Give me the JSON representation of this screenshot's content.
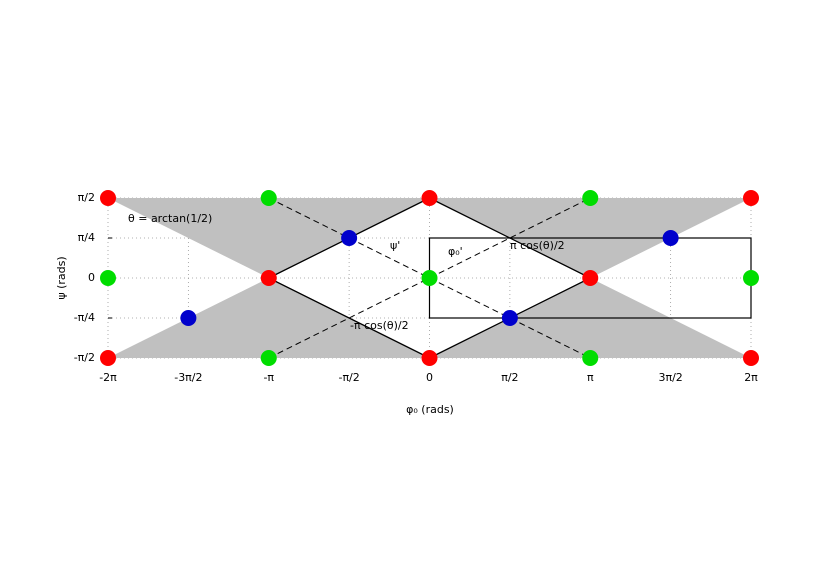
{
  "chart_data": {
    "type": "scatter",
    "xlabel": "φ₀ (rads)",
    "ylabel": "ψ (rads)",
    "xlim": [
      -6.2832,
      6.2832
    ],
    "xticks": [
      {
        "value": -6.2832,
        "label": "-2π"
      },
      {
        "value": -4.7124,
        "label": "-3π/2"
      },
      {
        "value": -3.1416,
        "label": "-π"
      },
      {
        "value": -1.5708,
        "label": "-π/2"
      },
      0,
      {
        "value": 1.5708,
        "label": "π/2"
      },
      {
        "value": 3.1416,
        "label": "π"
      },
      {
        "value": 4.7124,
        "label": "3π/2"
      },
      {
        "value": 6.2832,
        "label": "2π"
      }
    ],
    "ylim": [
      -1.5708,
      1.5708
    ],
    "yticks": [
      {
        "value": -1.5708,
        "label": "-π/2"
      },
      {
        "value": -0.7854,
        "label": "-π/4"
      },
      0,
      {
        "value": 0.7854,
        "label": "π/4"
      },
      {
        "value": 1.5708,
        "label": "π/2"
      }
    ],
    "grid": true,
    "annotations": [
      "θ = arctan(1/2)",
      "ψ'",
      "φ₀'",
      "π cos(θ)/2",
      "-π cos(θ)/2"
    ],
    "series": [
      {
        "color": "#ff0000",
        "x": [
          -6.2832,
          -6.2832,
          -3.1416,
          0,
          0,
          3.1416,
          6.2832,
          6.2832
        ],
        "values": [
          1.5708,
          -1.5708,
          0,
          1.5708,
          -1.5708,
          0,
          1.5708,
          -1.5708
        ]
      },
      {
        "color": "#00dd00",
        "x": [
          -3.1416,
          -3.1416,
          -6.2832,
          0,
          3.1416,
          3.1416,
          6.2832
        ],
        "values": [
          1.5708,
          -1.5708,
          0,
          0,
          1.5708,
          -1.5708,
          0
        ]
      },
      {
        "color": "#0000cc",
        "x": [
          -4.7124,
          -1.5708,
          1.5708,
          4.7124
        ],
        "values": [
          -0.7854,
          0.7854,
          -0.7854,
          0.7854
        ]
      }
    ]
  }
}
